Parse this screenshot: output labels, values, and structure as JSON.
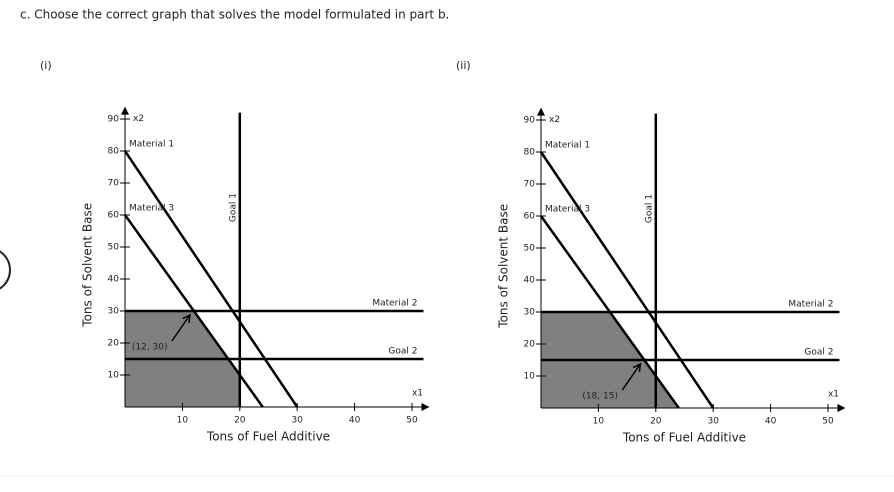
{
  "question": "c. Choose the correct graph that solves the model formulated in part b.",
  "chart_data": [
    {
      "type": "line",
      "label": "(i)",
      "xlabel": "Tons of Fuel Additive",
      "ylabel": "Tons of Solvent Base",
      "x_axis_name": "x1",
      "y_axis_name": "x2",
      "xlim": [
        0,
        52
      ],
      "ylim": [
        0,
        92
      ],
      "xticks": [
        10,
        20,
        30,
        40,
        50
      ],
      "yticks": [
        10,
        20,
        30,
        40,
        50,
        60,
        70,
        80,
        90
      ],
      "series": [
        {
          "name": "Material 1",
          "color": "#000000",
          "x": [
            0,
            30
          ],
          "values": [
            80,
            0
          ]
        },
        {
          "name": "Material 3",
          "color": "#000000",
          "x": [
            0,
            24
          ],
          "values": [
            60,
            0
          ]
        },
        {
          "name": "Goal 1",
          "color": "#000000",
          "x": [
            20,
            20
          ],
          "values": [
            0,
            92
          ]
        },
        {
          "name": "Material 2",
          "color": "#000000",
          "x": [
            0,
            52
          ],
          "values": [
            30,
            30
          ]
        },
        {
          "name": "Goal 2",
          "color": "#000000",
          "x": [
            0,
            52
          ],
          "values": [
            15,
            15
          ]
        }
      ],
      "region": {
        "color": "#808080",
        "x": [
          0,
          0,
          12,
          20,
          20
        ],
        "values": [
          0,
          30,
          30,
          10,
          0
        ]
      },
      "annotation": {
        "text": "(12, 30)",
        "x": 12,
        "y": 30
      }
    },
    {
      "type": "line",
      "label": "(ii)",
      "xlabel": "Tons of Fuel Additive",
      "ylabel": "Tons of Solvent Base",
      "x_axis_name": "x1",
      "y_axis_name": "x2",
      "xlim": [
        0,
        52
      ],
      "ylim": [
        0,
        92
      ],
      "xticks": [
        10,
        20,
        30,
        40,
        50
      ],
      "yticks": [
        10,
        20,
        30,
        40,
        50,
        60,
        70,
        80,
        90
      ],
      "series": [
        {
          "name": "Material 1",
          "color": "#000000",
          "x": [
            0,
            30
          ],
          "values": [
            80,
            0
          ]
        },
        {
          "name": "Material 3",
          "color": "#000000",
          "x": [
            0,
            24
          ],
          "values": [
            60,
            0
          ]
        },
        {
          "name": "Goal 1",
          "color": "#000000",
          "x": [
            20,
            20
          ],
          "values": [
            0,
            92
          ]
        },
        {
          "name": "Material 2",
          "color": "#000000",
          "x": [
            0,
            52
          ],
          "values": [
            30,
            30
          ]
        },
        {
          "name": "Goal 2",
          "color": "#000000",
          "x": [
            0,
            52
          ],
          "values": [
            15,
            15
          ]
        }
      ],
      "region": {
        "color": "#808080",
        "x": [
          0,
          0,
          12,
          24
        ],
        "values": [
          0,
          30,
          30,
          0
        ]
      },
      "annotation": {
        "text": "(18, 15)",
        "x": 18,
        "y": 15
      }
    }
  ]
}
